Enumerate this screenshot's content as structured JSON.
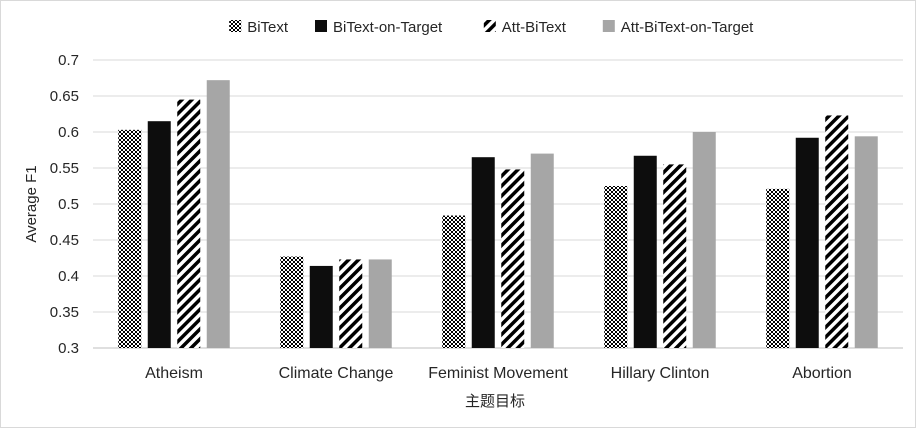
{
  "chart_data": {
    "type": "bar",
    "title": "",
    "xlabel": "主题目标",
    "ylabel": "Average F1",
    "ylim": [
      0.3,
      0.7
    ],
    "yticks": [
      "0.3",
      "0.35",
      "0.4",
      "0.45",
      "0.5",
      "0.55",
      "0.6",
      "0.65",
      "0.7"
    ],
    "grid": true,
    "legend_position": "top",
    "categories": [
      "Atheism",
      "Climate Change",
      "Feminist Movement",
      "Hillary Clinton",
      "Abortion"
    ],
    "series": [
      {
        "name": "BiText",
        "pattern": "dots",
        "color": "#000000",
        "values": [
          0.603,
          0.427,
          0.484,
          0.525,
          0.521
        ]
      },
      {
        "name": "BiText-on-Target",
        "pattern": "solid",
        "color": "#0d0d0d",
        "values": [
          0.615,
          0.414,
          0.565,
          0.567,
          0.592
        ]
      },
      {
        "name": "Att-BiText",
        "pattern": "stripes",
        "color": "#000000",
        "values": [
          0.645,
          0.423,
          0.548,
          0.555,
          0.623
        ]
      },
      {
        "name": "Att-BiText-on-Target",
        "pattern": "solid",
        "color": "#a6a6a6",
        "values": [
          0.672,
          0.423,
          0.57,
          0.6,
          0.594
        ]
      }
    ]
  }
}
